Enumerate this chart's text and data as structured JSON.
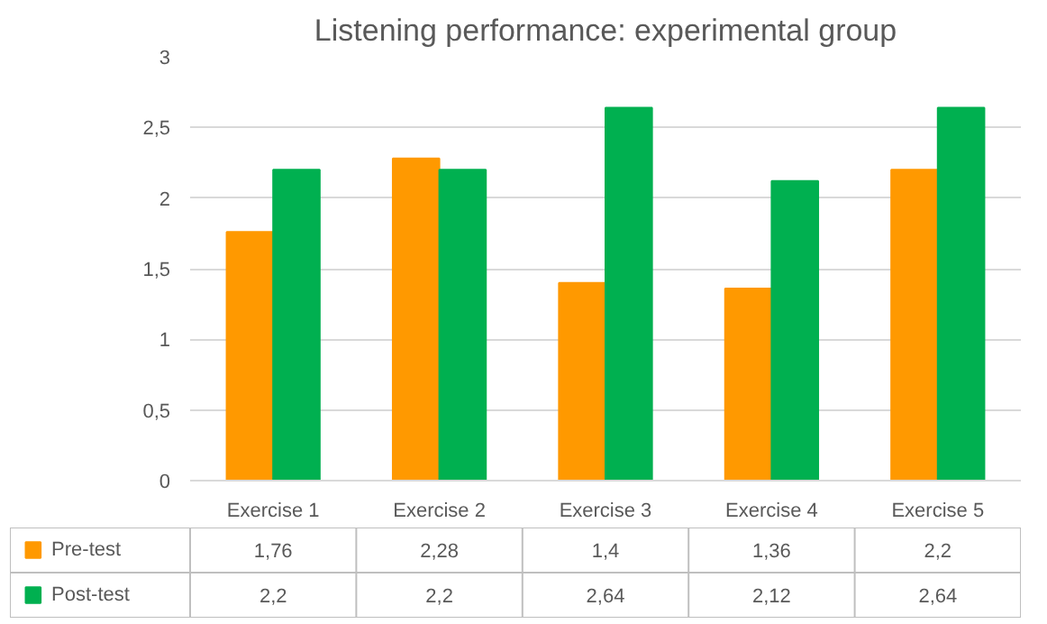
{
  "chart_data": {
    "type": "bar",
    "title": "Listening performance: experimental group",
    "categories": [
      "Exercise 1",
      "Exercise 2",
      "Exercise 3",
      "Exercise 4",
      "Exercise 5"
    ],
    "series": [
      {
        "name": "Pre-test",
        "color": "#ff9900",
        "values": [
          1.76,
          2.28,
          1.4,
          1.36,
          2.2
        ],
        "value_labels": [
          "1,76",
          "2,28",
          "1,4",
          "1,36",
          "2,2"
        ]
      },
      {
        "name": "Post-test",
        "color": "#00b050",
        "values": [
          2.2,
          2.2,
          2.64,
          2.12,
          2.64
        ],
        "value_labels": [
          "2,2",
          "2,2",
          "2,64",
          "2,12",
          "2,64"
        ]
      }
    ],
    "ylim": [
      0,
      3
    ],
    "yticks": [
      0,
      {
        "value": 0.5,
        "label": "0,5"
      },
      1,
      {
        "value": 1.5,
        "label": "1,5"
      },
      2,
      {
        "value": 2.5,
        "label": "2,5"
      },
      3
    ],
    "grid": "y",
    "legend": "bottom"
  }
}
